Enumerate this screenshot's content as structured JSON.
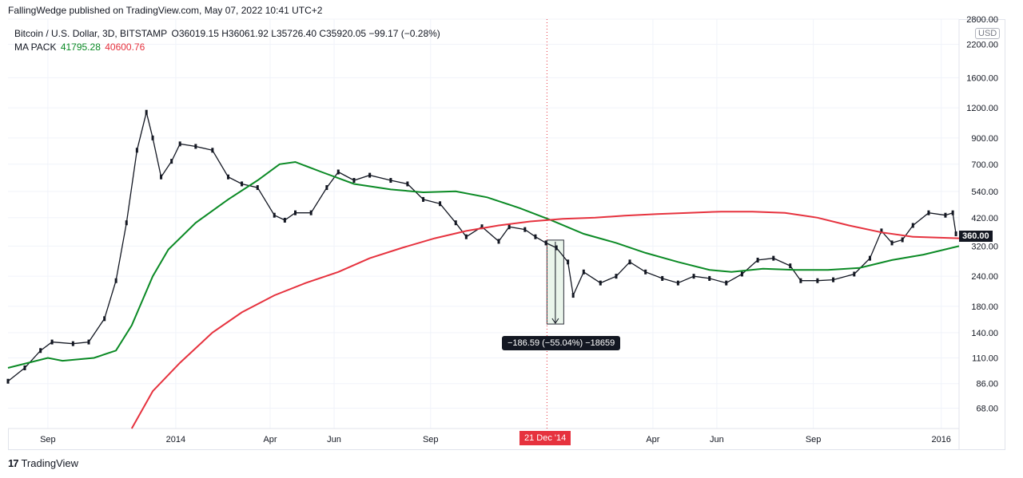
{
  "header": {
    "published": "FallingWedge published on TradingView.com, May 07, 2022 10:41 UTC+2"
  },
  "legend": {
    "symbol": "Bitcoin / U.S. Dollar, 3D, BITSTAMP",
    "ohlc": "O36019.15  H36061.92  L35726.40  C35920.05  −99.17 (−0.28%)",
    "indicator_name": "MA PACK",
    "ma_fast_value": "41795.28",
    "ma_slow_value": "40600.76"
  },
  "price_axis": {
    "currency": "USD",
    "last_price_tag": "360.00"
  },
  "time_axis": {
    "crosshair_date": "21 Dec '14"
  },
  "measure": {
    "label": "−186.59 (−55.04%) −18659"
  },
  "footer": {
    "brand": "TradingView"
  },
  "colors": {
    "ma_fast": "#0b8a25",
    "ma_slow": "#e6323e",
    "candle": "#131722",
    "measure_fill": "#e8f5e9",
    "crosshair": "#e6323e"
  },
  "chart_data": {
    "type": "line",
    "title": "Bitcoin / U.S. Dollar, 3D, BITSTAMP",
    "xlabel": "",
    "ylabel": "",
    "y_scale": "log",
    "ylim": [
      56,
      2800
    ],
    "y_ticks": [
      2800,
      2200,
      1600,
      1200,
      900,
      700,
      540,
      420,
      320,
      240,
      180,
      140,
      110,
      86,
      68
    ],
    "y_tick_labels": [
      "2800.00",
      "2200.00",
      "1600.00",
      "1200.00",
      "900.00",
      "700.00",
      "540.00",
      "420.00",
      "320.00",
      "240.00",
      "180.00",
      "140.00",
      "110.00",
      "86.00",
      "68.00"
    ],
    "x_ticks": [
      "2013-09-01",
      "2014-01-01",
      "2014-04-01",
      "2014-06-01",
      "2014-09-01",
      "2015-04-01",
      "2015-06-01",
      "2015-09-01",
      "2016-01-01"
    ],
    "x_tick_labels": [
      "Sep",
      "2014",
      "Apr",
      "Jun",
      "Sep",
      "Apr",
      "Jun",
      "Sep",
      "2016"
    ],
    "x_range": [
      "2013-07-25",
      "2016-01-18"
    ],
    "grid": true,
    "price_series": {
      "name": "Bitcoin / U.S. Dollar",
      "points": [
        [
          "2013-07-25",
          88
        ],
        [
          "2013-08-10",
          100
        ],
        [
          "2013-08-25",
          118
        ],
        [
          "2013-09-05",
          128
        ],
        [
          "2013-09-25",
          126
        ],
        [
          "2013-10-10",
          128
        ],
        [
          "2013-10-25",
          160
        ],
        [
          "2013-11-05",
          230
        ],
        [
          "2013-11-15",
          400
        ],
        [
          "2013-11-25",
          800
        ],
        [
          "2013-12-04",
          1150
        ],
        [
          "2013-12-10",
          900
        ],
        [
          "2013-12-18",
          620
        ],
        [
          "2013-12-28",
          720
        ],
        [
          "2014-01-05",
          850
        ],
        [
          "2014-01-20",
          830
        ],
        [
          "2014-02-05",
          800
        ],
        [
          "2014-02-20",
          620
        ],
        [
          "2014-03-05",
          580
        ],
        [
          "2014-03-20",
          560
        ],
        [
          "2014-04-05",
          430
        ],
        [
          "2014-04-15",
          410
        ],
        [
          "2014-04-25",
          440
        ],
        [
          "2014-05-10",
          440
        ],
        [
          "2014-05-25",
          560
        ],
        [
          "2014-06-05",
          650
        ],
        [
          "2014-06-20",
          600
        ],
        [
          "2014-07-05",
          630
        ],
        [
          "2014-07-25",
          600
        ],
        [
          "2014-08-10",
          580
        ],
        [
          "2014-08-25",
          500
        ],
        [
          "2014-09-10",
          480
        ],
        [
          "2014-09-25",
          400
        ],
        [
          "2014-10-05",
          350
        ],
        [
          "2014-10-20",
          385
        ],
        [
          "2014-11-05",
          335
        ],
        [
          "2014-11-15",
          385
        ],
        [
          "2014-11-30",
          375
        ],
        [
          "2014-12-10",
          350
        ],
        [
          "2014-12-20",
          330
        ],
        [
          "2014-12-30",
          315
        ],
        [
          "2015-01-10",
          275
        ],
        [
          "2015-01-15",
          200
        ],
        [
          "2015-01-25",
          250
        ],
        [
          "2015-02-10",
          225
        ],
        [
          "2015-02-25",
          240
        ],
        [
          "2015-03-10",
          275
        ],
        [
          "2015-03-25",
          250
        ],
        [
          "2015-04-10",
          235
        ],
        [
          "2015-04-25",
          225
        ],
        [
          "2015-05-10",
          240
        ],
        [
          "2015-05-25",
          235
        ],
        [
          "2015-06-10",
          225
        ],
        [
          "2015-06-25",
          245
        ],
        [
          "2015-07-10",
          280
        ],
        [
          "2015-07-25",
          285
        ],
        [
          "2015-08-10",
          265
        ],
        [
          "2015-08-20",
          230
        ],
        [
          "2015-09-05",
          230
        ],
        [
          "2015-09-20",
          232
        ],
        [
          "2015-10-10",
          245
        ],
        [
          "2015-10-25",
          285
        ],
        [
          "2015-11-05",
          370
        ],
        [
          "2015-11-15",
          330
        ],
        [
          "2015-11-25",
          340
        ],
        [
          "2015-12-05",
          390
        ],
        [
          "2015-12-20",
          440
        ],
        [
          "2016-01-05",
          430
        ],
        [
          "2016-01-12",
          440
        ],
        [
          "2016-01-15",
          360
        ]
      ]
    },
    "series": [
      {
        "name": "",
        "color": "#0b8a25",
        "points": [
          [
            "2013-07-25",
            100
          ],
          [
            "2013-09-01",
            110
          ],
          [
            "2013-09-15",
            107
          ],
          [
            "2013-10-15",
            110
          ],
          [
            "2013-11-05",
            118
          ],
          [
            "2013-11-20",
            150
          ],
          [
            "2013-12-10",
            240
          ],
          [
            "2013-12-25",
            310
          ],
          [
            "2014-01-20",
            400
          ],
          [
            "2014-02-20",
            500
          ],
          [
            "2014-03-20",
            600
          ],
          [
            "2014-04-10",
            700
          ],
          [
            "2014-04-25",
            715
          ],
          [
            "2014-05-20",
            650
          ],
          [
            "2014-06-20",
            580
          ],
          [
            "2014-07-25",
            550
          ],
          [
            "2014-08-25",
            535
          ],
          [
            "2014-09-25",
            540
          ],
          [
            "2014-10-25",
            510
          ],
          [
            "2014-11-25",
            460
          ],
          [
            "2014-12-25",
            410
          ],
          [
            "2015-01-25",
            360
          ],
          [
            "2015-02-25",
            330
          ],
          [
            "2015-03-25",
            300
          ],
          [
            "2015-04-25",
            275
          ],
          [
            "2015-05-25",
            255
          ],
          [
            "2015-06-15",
            250
          ],
          [
            "2015-07-15",
            258
          ],
          [
            "2015-08-15",
            255
          ],
          [
            "2015-09-15",
            255
          ],
          [
            "2015-10-15",
            260
          ],
          [
            "2015-11-15",
            280
          ],
          [
            "2015-12-15",
            295
          ],
          [
            "2016-01-18",
            320
          ]
        ]
      },
      {
        "name": "",
        "color": "#e6323e",
        "points": [
          [
            "2013-11-20",
            55
          ],
          [
            "2013-12-10",
            80
          ],
          [
            "2014-01-05",
            105
          ],
          [
            "2014-02-05",
            140
          ],
          [
            "2014-03-05",
            170
          ],
          [
            "2014-04-05",
            200
          ],
          [
            "2014-05-05",
            225
          ],
          [
            "2014-06-05",
            250
          ],
          [
            "2014-07-05",
            285
          ],
          [
            "2014-08-05",
            315
          ],
          [
            "2014-09-05",
            345
          ],
          [
            "2014-10-05",
            370
          ],
          [
            "2014-11-05",
            390
          ],
          [
            "2014-12-05",
            405
          ],
          [
            "2015-01-05",
            415
          ],
          [
            "2015-02-05",
            420
          ],
          [
            "2015-03-05",
            428
          ],
          [
            "2015-04-05",
            435
          ],
          [
            "2015-05-05",
            440
          ],
          [
            "2015-06-05",
            445
          ],
          [
            "2015-07-05",
            445
          ],
          [
            "2015-08-05",
            440
          ],
          [
            "2015-09-05",
            420
          ],
          [
            "2015-10-05",
            390
          ],
          [
            "2015-11-05",
            365
          ],
          [
            "2015-12-05",
            350
          ],
          [
            "2016-01-18",
            345
          ]
        ]
      }
    ],
    "annotations": [
      {
        "type": "crosshair",
        "x": "2014-12-21"
      },
      {
        "type": "price-range",
        "x_from": "2014-12-21",
        "x_to": "2015-01-06",
        "y_from": 339,
        "y_to": 152,
        "label": "−186.59 (−55.04%) −18659"
      }
    ]
  }
}
